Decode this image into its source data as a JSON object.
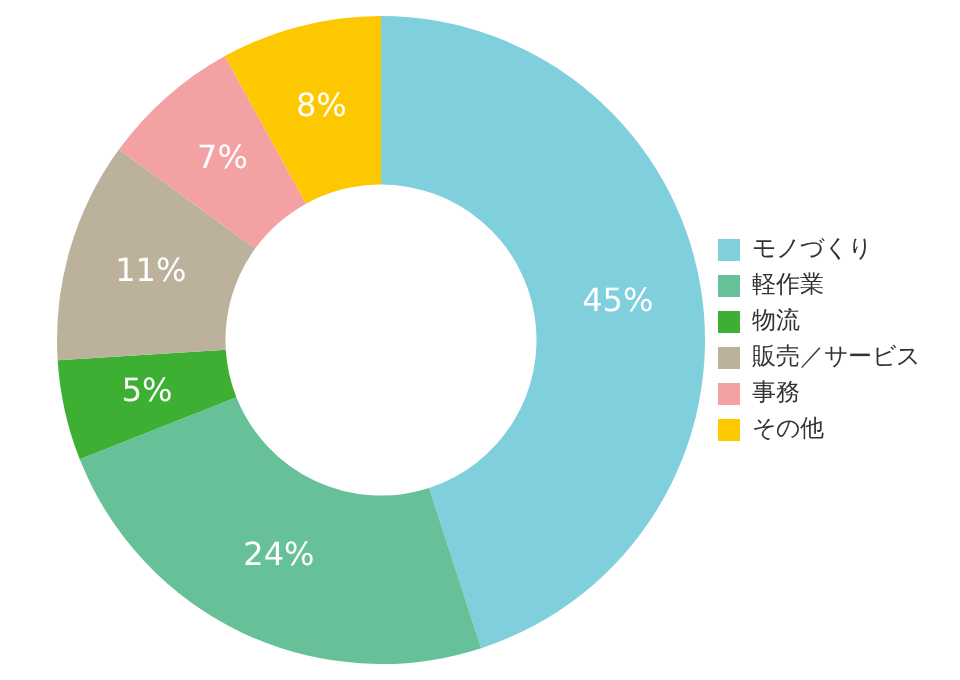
{
  "chart_data": {
    "type": "donut",
    "categories": [
      "モノづくり",
      "軽作業",
      "物流",
      "販売／サービス",
      "事務",
      "その他"
    ],
    "values": [
      45,
      24,
      5,
      11,
      7,
      8
    ],
    "colors": [
      "#80cfdd",
      "#66c199",
      "#3db034",
      "#bcb19b",
      "#f3a1a3",
      "#fdc800"
    ],
    "value_labels": [
      "45%",
      "24%",
      "5%",
      "11%",
      "7%",
      "8%"
    ],
    "legend": "right"
  }
}
